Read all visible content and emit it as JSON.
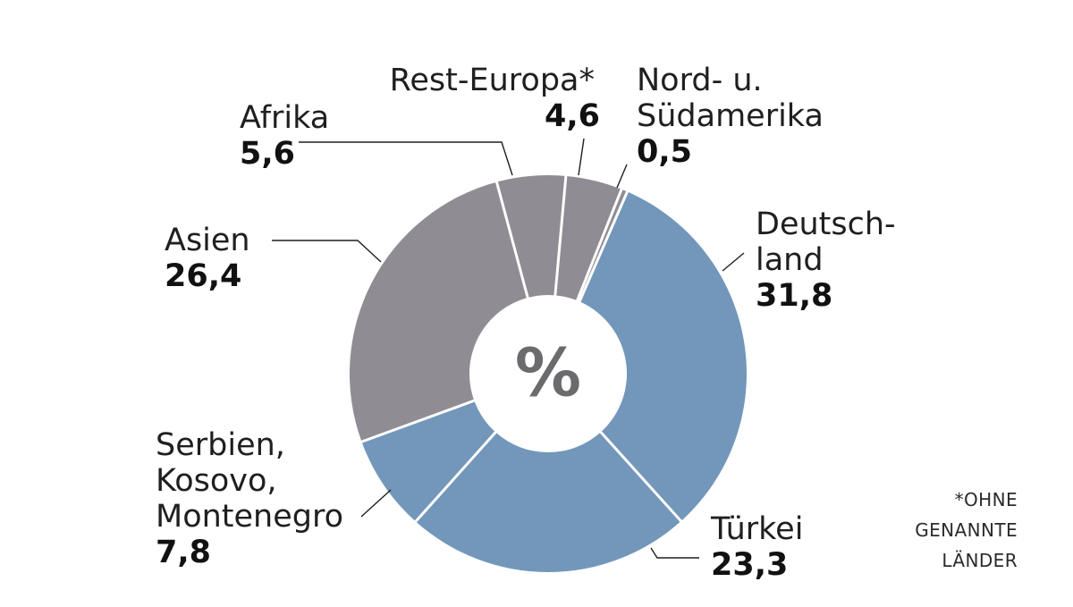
{
  "chart_data": {
    "type": "donut",
    "unit": "%",
    "center_label": "%",
    "colors": {
      "gray": "#8f8d93",
      "blue": "#7297ba",
      "separator": "#ffffff"
    },
    "slices": [
      {
        "name_lines": [
          "Deutsch-",
          "land"
        ],
        "value": 31.8,
        "display_value": "31,8",
        "color": "blue"
      },
      {
        "name_lines": [
          "Türkei"
        ],
        "value": 23.3,
        "display_value": "23,3",
        "color": "blue"
      },
      {
        "name_lines": [
          "Serbien,",
          "Kosovo,",
          "Montenegro"
        ],
        "value": 7.8,
        "display_value": "7,8",
        "color": "blue"
      },
      {
        "name_lines": [
          "Asien"
        ],
        "value": 26.4,
        "display_value": "26,4",
        "color": "gray"
      },
      {
        "name_lines": [
          "Afrika"
        ],
        "value": 5.6,
        "display_value": "5,6",
        "color": "gray"
      },
      {
        "name_lines": [
          "Rest-Europa*"
        ],
        "value": 4.6,
        "display_value": "4,6",
        "color": "gray"
      },
      {
        "name_lines": [
          "Nord- u.",
          "Südamerika"
        ],
        "value": 0.5,
        "display_value": "0,5",
        "color": "gray"
      }
    ],
    "footnote_lines": [
      "*OHNE",
      "GENANNTE",
      "LÄNDER"
    ]
  }
}
